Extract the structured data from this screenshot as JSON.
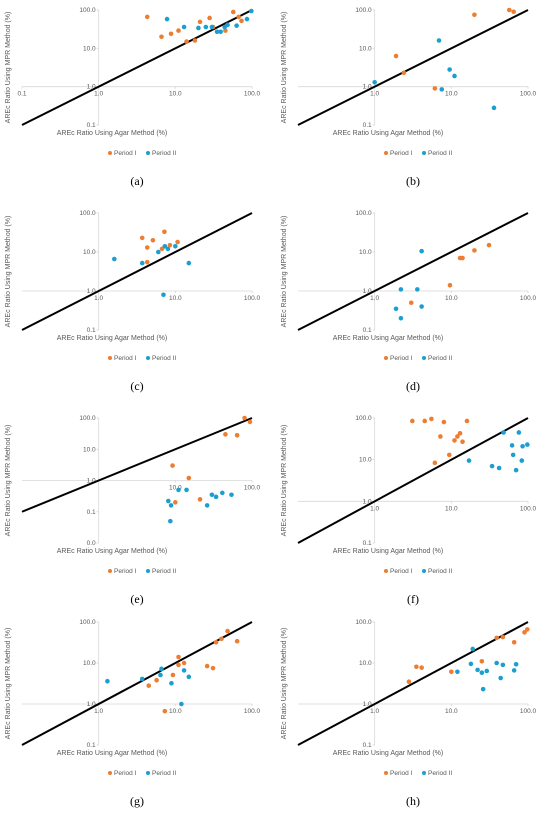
{
  "chart_data": [
    {
      "type": "scatter",
      "caption": "(a)",
      "xlabel": "AREc Ratio Using Agar Method (%)",
      "ylabel": "AREc Ratio Using MPR Method (%)",
      "log_scale": true,
      "xlim": [
        0.1,
        100
      ],
      "ylim": [
        0.1,
        100
      ],
      "xticks": [
        {
          "value": 0.1,
          "label": "0.1"
        },
        {
          "value": 1,
          "label": "1.0"
        },
        {
          "value": 10,
          "label": "10.0"
        },
        {
          "value": 100,
          "label": "100.0"
        }
      ],
      "yticks": [
        {
          "value": 0.1,
          "label": "0.1"
        },
        {
          "value": 1,
          "label": "1.0"
        },
        {
          "value": 10,
          "label": "10.0"
        },
        {
          "value": 100,
          "label": "100.0"
        }
      ],
      "series": [
        {
          "name": "Period I",
          "color": "#ed7d31",
          "x": [
            4.3,
            6.6,
            8.8,
            11,
            14,
            18,
            21,
            28,
            31,
            45,
            57,
            67,
            73
          ],
          "values": [
            66,
            20,
            24,
            29,
            15,
            16,
            49,
            62,
            36,
            29,
            89,
            66,
            52
          ]
        },
        {
          "name": "Period II",
          "color": "#1b9fd0",
          "x": [
            7.8,
            13,
            20,
            25,
            30,
            35,
            39,
            44,
            48,
            63,
            86,
            98
          ],
          "values": [
            58,
            36,
            34,
            36,
            36,
            27,
            27,
            36,
            41,
            39,
            58,
            94
          ]
        }
      ]
    },
    {
      "type": "scatter",
      "caption": "(b)",
      "xlabel": "AREc Ratio Using Agar Method (%)",
      "ylabel": "AREc Ratio Using MPR Method (%)",
      "log_scale": true,
      "xlim": [
        0.1,
        100
      ],
      "ylim": [
        0.1,
        100
      ],
      "xticks": [
        {
          "value": 1,
          "label": "1.0"
        },
        {
          "value": 10,
          "label": "10.0"
        },
        {
          "value": 100,
          "label": "100.0"
        }
      ],
      "yticks": [
        {
          "value": 0.1,
          "label": "0.1"
        },
        {
          "value": 1,
          "label": "1.0"
        },
        {
          "value": 10,
          "label": "10.0"
        },
        {
          "value": 100,
          "label": "100.0"
        }
      ],
      "series": [
        {
          "name": "Period I",
          "color": "#ed7d31",
          "x": [
            1.9,
            2.4,
            6.1,
            20,
            57,
            65
          ],
          "values": [
            6.3,
            2.3,
            0.9,
            75,
            100,
            90
          ]
        },
        {
          "name": "Period II",
          "color": "#1b9fd0",
          "x": [
            1.0,
            6.9,
            9.5,
            11,
            7.5,
            36
          ],
          "values": [
            1.3,
            16,
            2.8,
            1.9,
            0.85,
            0.28
          ]
        }
      ]
    },
    {
      "type": "scatter",
      "caption": "(c)",
      "xlabel": "AREc Ratio Using Agar Method (%)",
      "ylabel": "AREc Ratio Using MPR Method (%)",
      "log_scale": true,
      "xlim": [
        0.1,
        100
      ],
      "ylim": [
        0.1,
        100
      ],
      "xticks": [
        {
          "value": 1,
          "label": "1.0"
        },
        {
          "value": 10,
          "label": "10.0"
        },
        {
          "value": 100,
          "label": "100.0"
        }
      ],
      "yticks": [
        {
          "value": 0.1,
          "label": "0.1"
        },
        {
          "value": 1,
          "label": "1.0"
        },
        {
          "value": 10,
          "label": "10.0"
        },
        {
          "value": 100,
          "label": "100.0"
        }
      ],
      "series": [
        {
          "name": "Period I",
          "color": "#ed7d31",
          "x": [
            3.7,
            4.3,
            5.1,
            4.3,
            7.2,
            6.7,
            8.5,
            10.7
          ],
          "values": [
            23,
            13,
            20,
            5.5,
            33,
            12,
            15,
            18
          ]
        },
        {
          "name": "Period II",
          "color": "#1b9fd0",
          "x": [
            1.6,
            3.7,
            6,
            7.3,
            8,
            10,
            7,
            15
          ],
          "values": [
            6.6,
            5.2,
            10,
            14,
            12,
            14,
            0.8,
            5.2
          ]
        }
      ]
    },
    {
      "type": "scatter",
      "caption": "(d)",
      "xlabel": "AREc Ratio Using Agar Method (%)",
      "ylabel": "AREc Ratio Using MPR Method (%)",
      "log_scale": true,
      "xlim": [
        0.1,
        100
      ],
      "ylim": [
        0.1,
        100
      ],
      "xticks": [
        {
          "value": 1,
          "label": "1.0"
        },
        {
          "value": 10,
          "label": "10.0"
        },
        {
          "value": 100,
          "label": "100.0"
        }
      ],
      "yticks": [
        {
          "value": 0.1,
          "label": "0.1"
        },
        {
          "value": 1,
          "label": "1.0"
        },
        {
          "value": 10,
          "label": "10.0"
        },
        {
          "value": 100,
          "label": "100.0"
        }
      ],
      "series": [
        {
          "name": "Period I",
          "color": "#ed7d31",
          "x": [
            3,
            9.6,
            13,
            14,
            20,
            31
          ],
          "values": [
            0.5,
            1.4,
            7,
            7,
            11,
            15
          ]
        },
        {
          "name": "Period II",
          "color": "#1b9fd0",
          "x": [
            2.2,
            4.1,
            3.6,
            1.9,
            2.2,
            4.1
          ],
          "values": [
            1.1,
            10.5,
            1.1,
            0.35,
            0.2,
            0.4
          ]
        }
      ]
    },
    {
      "type": "scatter",
      "caption": "(e)",
      "xlabel": "AREc Ratio Using Agar Method (%)",
      "ylabel": "AREc Ratio Using MPR Method (%)",
      "log_scale": true,
      "xlim": [
        0.1,
        100
      ],
      "ylim": [
        0.01,
        100
      ],
      "xticks": [
        {
          "value": 10,
          "label": "10.0"
        },
        {
          "value": 100,
          "label": "100.0"
        }
      ],
      "yticks": [
        {
          "value": 0.01,
          "label": "0.0"
        },
        {
          "value": 0.1,
          "label": "0.1"
        },
        {
          "value": 1,
          "label": "1.0"
        },
        {
          "value": 10,
          "label": "10.0"
        },
        {
          "value": 100,
          "label": "100.0"
        }
      ],
      "series": [
        {
          "name": "Period I",
          "color": "#ed7d31",
          "x": [
            9.2,
            10,
            15,
            21,
            45,
            64,
            80,
            94
          ],
          "values": [
            3,
            0.2,
            1.2,
            0.25,
            30,
            28,
            100,
            75
          ]
        },
        {
          "name": "Period II",
          "color": "#1b9fd0",
          "x": [
            8.1,
            8.8,
            11,
            14,
            26,
            30,
            34,
            41,
            54,
            8.6
          ],
          "values": [
            0.22,
            0.16,
            0.5,
            0.5,
            0.16,
            0.35,
            0.3,
            0.4,
            0.35,
            0.05
          ]
        }
      ]
    },
    {
      "type": "scatter",
      "caption": "(f)",
      "xlabel": "AREc Ratio Using Agar Method (%)",
      "ylabel": "AREc Ratio Using MPR Method (%)",
      "log_scale": true,
      "xlim": [
        0.1,
        100
      ],
      "ylim": [
        0.1,
        100
      ],
      "xticks": [
        {
          "value": 1,
          "label": "1.0"
        },
        {
          "value": 10,
          "label": "10.0"
        },
        {
          "value": 100,
          "label": "100.0"
        }
      ],
      "yticks": [
        {
          "value": 0.1,
          "label": "0.1"
        },
        {
          "value": 1,
          "label": "1.0"
        },
        {
          "value": 10,
          "label": "10.0"
        },
        {
          "value": 100,
          "label": "100.0"
        }
      ],
      "series": [
        {
          "name": "Period I",
          "color": "#ed7d31",
          "x": [
            3.1,
            4.5,
            5.5,
            6.1,
            7.2,
            8,
            9.4,
            11,
            12,
            13,
            14,
            16
          ],
          "values": [
            85,
            85,
            95,
            8.4,
            36,
            80,
            13,
            29,
            36,
            43,
            27,
            85
          ]
        },
        {
          "name": "Period II",
          "color": "#1b9fd0",
          "x": [
            17,
            34,
            42,
            48,
            62,
            64,
            70,
            76,
            83,
            85,
            98
          ],
          "values": [
            9.5,
            7,
            6.3,
            45,
            22,
            13,
            5.6,
            45,
            9.5,
            21,
            23
          ]
        }
      ]
    },
    {
      "type": "scatter",
      "caption": "(g)",
      "xlabel": "AREc Ratio Using Agar Method (%)",
      "ylabel": "AREc Ratio Using MPR Method (%)",
      "log_scale": true,
      "xlim": [
        0.1,
        100
      ],
      "ylim": [
        0.1,
        100
      ],
      "xticks": [
        {
          "value": 1,
          "label": "1.0"
        },
        {
          "value": 10,
          "label": "10.0"
        },
        {
          "value": 100,
          "label": "100.0"
        }
      ],
      "yticks": [
        {
          "value": 0.1,
          "label": "0.1"
        },
        {
          "value": 1,
          "label": "1.0"
        },
        {
          "value": 10,
          "label": "10.0"
        },
        {
          "value": 100,
          "label": "100.0"
        }
      ],
      "series": [
        {
          "name": "Period I",
          "color": "#ed7d31",
          "x": [
            4.5,
            5.7,
            7.3,
            9.3,
            11,
            11,
            13,
            26,
            31,
            34,
            40,
            48,
            64
          ],
          "values": [
            2.8,
            3.8,
            0.67,
            5.1,
            9,
            14,
            10,
            8.4,
            7.5,
            32,
            39,
            60,
            34
          ]
        },
        {
          "name": "Period II",
          "color": "#1b9fd0",
          "x": [
            1.3,
            3.7,
            6.4,
            6.6,
            8.9,
            12,
            13,
            15
          ],
          "values": [
            3.6,
            4.1,
            5.1,
            7.2,
            3.2,
            1,
            6.6,
            4.6
          ]
        }
      ]
    },
    {
      "type": "scatter",
      "caption": "(h)",
      "xlabel": "AREc Ratio Using Agar Method (%)",
      "ylabel": "AREc Ratio Using MPR Method (%)",
      "log_scale": true,
      "xlim": [
        0.1,
        100
      ],
      "ylim": [
        0.1,
        100
      ],
      "xticks": [
        {
          "value": 1,
          "label": "1.0"
        },
        {
          "value": 10,
          "label": "10.0"
        },
        {
          "value": 100,
          "label": "100.0"
        }
      ],
      "yticks": [
        {
          "value": 0.1,
          "label": "0.1"
        },
        {
          "value": 1,
          "label": "1.0"
        },
        {
          "value": 10,
          "label": "10.0"
        },
        {
          "value": 100,
          "label": "100.0"
        }
      ],
      "series": [
        {
          "name": "Period I",
          "color": "#ed7d31",
          "x": [
            2.8,
            3.5,
            4.1,
            10,
            25,
            39,
            47,
            66,
            90,
            98
          ],
          "values": [
            3.5,
            8.1,
            7.7,
            6.1,
            11,
            41,
            43,
            32,
            56,
            66
          ]
        },
        {
          "name": "Period II",
          "color": "#1b9fd0",
          "x": [
            12,
            18,
            19,
            22,
            25,
            26,
            29,
            39,
            44,
            47,
            66,
            70
          ],
          "values": [
            6.1,
            9.5,
            22,
            6.8,
            5.8,
            2.3,
            6.4,
            10,
            4.3,
            9,
            6.6,
            9.3
          ]
        }
      ]
    }
  ]
}
